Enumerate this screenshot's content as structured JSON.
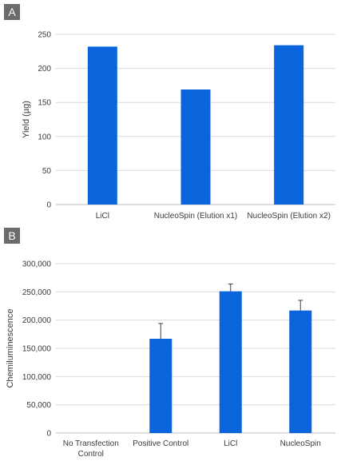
{
  "panels": {
    "a_label": "A",
    "b_label": "B"
  },
  "colors": {
    "bar": "#0a64dc",
    "grid": "#d9d9d9",
    "badge": "#6b6b6b",
    "error": "#404040"
  },
  "chart_data": [
    {
      "type": "bar",
      "title": "",
      "xlabel": "",
      "ylabel": "Yield (µg)",
      "categories": [
        "LiCl",
        "NucleoSpin (Elution x1)",
        "NucleoSpin (Elution x2)"
      ],
      "values": [
        232,
        169,
        234
      ],
      "ylim": [
        0,
        250
      ],
      "yticks": [
        0,
        50,
        100,
        150,
        200,
        250
      ],
      "ytick_labels": [
        "0",
        "50",
        "100",
        "150",
        "200",
        "250"
      ],
      "grid": true,
      "legend": "none"
    },
    {
      "type": "bar",
      "title": "",
      "xlabel": "",
      "ylabel": "Chemiluminescence",
      "categories": [
        "No Transfection\nControl",
        "Positive Control",
        "LiCl",
        "NucleoSpin"
      ],
      "values": [
        0,
        167000,
        251000,
        217000
      ],
      "errors": [
        0,
        27000,
        13000,
        18000
      ],
      "ylim": [
        0,
        300000
      ],
      "yticks": [
        0,
        50000,
        100000,
        150000,
        200000,
        250000,
        300000
      ],
      "ytick_labels": [
        "0",
        "50,000",
        "100,000",
        "150,000",
        "200,000",
        "250,000",
        "300,000"
      ],
      "grid": true,
      "legend": "none"
    }
  ]
}
